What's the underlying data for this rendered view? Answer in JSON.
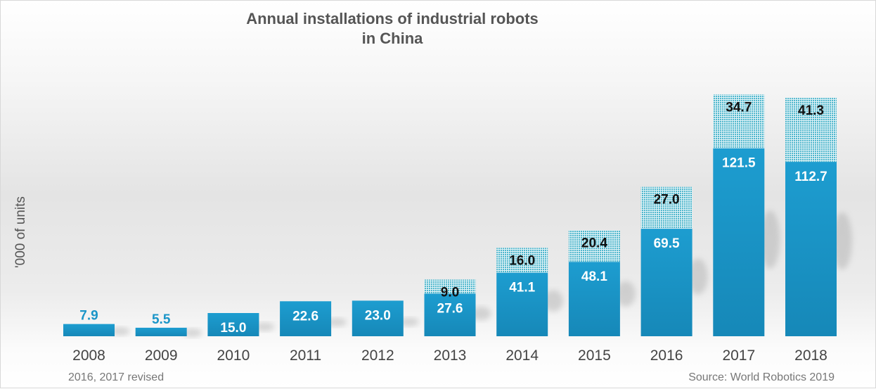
{
  "chart_data": {
    "type": "bar",
    "stacked": true,
    "title": "Annual installations of industrial robots\nin China",
    "xlabel": "",
    "ylabel": "'000 of units",
    "ylim": [
      0,
      160
    ],
    "grid": false,
    "legend": "none",
    "categories": [
      "2008",
      "2009",
      "2010",
      "2011",
      "2012",
      "2013",
      "2014",
      "2015",
      "2016",
      "2017",
      "2018"
    ],
    "series": [
      {
        "name": "Base",
        "color": "#1a95c8",
        "values": [
          7.9,
          5.5,
          15.0,
          22.6,
          23.0,
          27.6,
          41.1,
          48.1,
          69.5,
          121.5,
          112.7
        ]
      },
      {
        "name": "Increment (dotted)",
        "color": "#6fc6d8",
        "values": [
          0,
          0,
          0,
          0,
          0,
          9.0,
          16.0,
          20.4,
          27.0,
          34.7,
          41.3
        ]
      }
    ],
    "labels_base": [
      "7.9",
      "5.5",
      "15.0",
      "22.6",
      "23.0",
      "27.6",
      "41.1",
      "48.1",
      "69.5",
      "121.5",
      "112.7"
    ],
    "labels_top": [
      "",
      "",
      "",
      "",
      "",
      "9.0",
      "16.0",
      "20.4",
      "27.0",
      "34.7",
      "41.3"
    ],
    "annotations": {
      "footnote_left": "2016, 2017 revised",
      "source": "Source: World Robotics 2019"
    }
  }
}
